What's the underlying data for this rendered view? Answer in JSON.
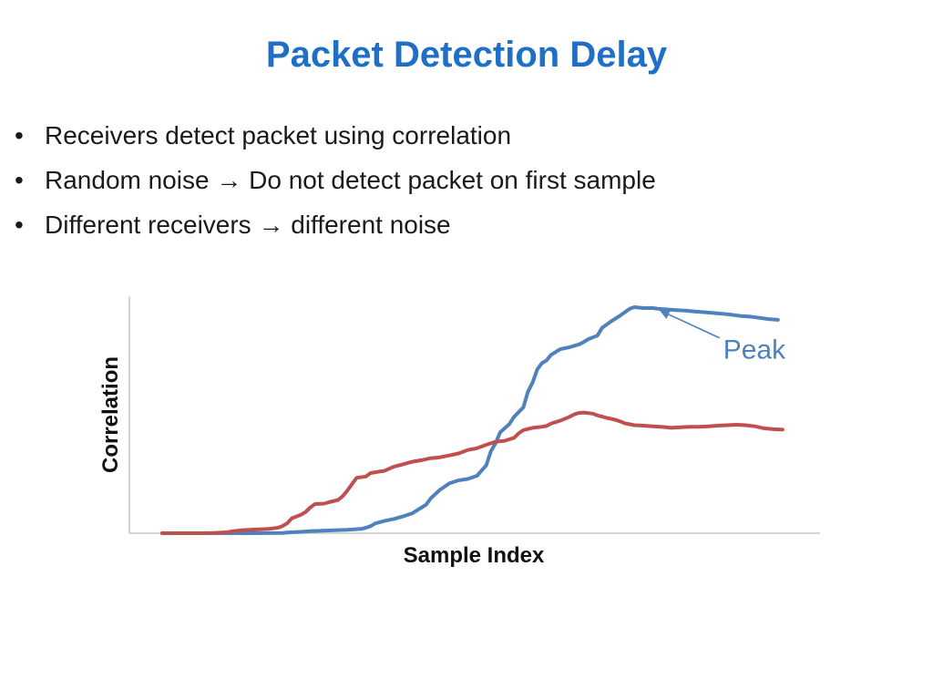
{
  "slide": {
    "title": "Packet Detection Delay",
    "bullets": [
      {
        "before": "Receivers detect packet using  correlation",
        "arrow": "",
        "after": ""
      },
      {
        "before": "Random noise ",
        "arrow": "→",
        "after": " Do not detect packet on first sample"
      },
      {
        "before": "Different receivers ",
        "arrow": "→",
        "after": " different noise"
      }
    ]
  },
  "chart_data": {
    "type": "line",
    "title": "",
    "xlabel": "Sample Index",
    "ylabel": "Correlation",
    "xlim": [
      0,
      135
    ],
    "ylim": [
      0,
      100
    ],
    "grid": false,
    "tick_labels": false,
    "annotation": {
      "text": "Peak",
      "series": 0,
      "target_x": 108,
      "color": "#4f81bd"
    },
    "series": [
      {
        "color": "#4f81bd",
        "points": [
          [
            0,
            0
          ],
          [
            10,
            0
          ],
          [
            20,
            0
          ],
          [
            26,
            0.1
          ],
          [
            27,
            0.3
          ],
          [
            30,
            0.6
          ],
          [
            32,
            0.9
          ],
          [
            36,
            1.2
          ],
          [
            40,
            1.5
          ],
          [
            43,
            1.9
          ],
          [
            44,
            2.4
          ],
          [
            45,
            3.1
          ],
          [
            46,
            4.3
          ],
          [
            48,
            5.4
          ],
          [
            50,
            6.3
          ],
          [
            52,
            7.4
          ],
          [
            54,
            8.8
          ],
          [
            55,
            10.1
          ],
          [
            57,
            12.6
          ],
          [
            58,
            15.4
          ],
          [
            60,
            19.2
          ],
          [
            62,
            22
          ],
          [
            64,
            23.4
          ],
          [
            66,
            24
          ],
          [
            68,
            25.4
          ],
          [
            70,
            30.1
          ],
          [
            71,
            36.3
          ],
          [
            72,
            39.8
          ],
          [
            73,
            44.6
          ],
          [
            75,
            48.3
          ],
          [
            76,
            51.5
          ],
          [
            78,
            55.7
          ],
          [
            79,
            62.6
          ],
          [
            80,
            66.6
          ],
          [
            81,
            72.4
          ],
          [
            82,
            75.2
          ],
          [
            83,
            76.4
          ],
          [
            84,
            78.9
          ],
          [
            86,
            81.4
          ],
          [
            88,
            82.3
          ],
          [
            90,
            83.5
          ],
          [
            91,
            84.5
          ],
          [
            92,
            85.8
          ],
          [
            94,
            87.4
          ],
          [
            95,
            90.8
          ],
          [
            96,
            92.3
          ],
          [
            97,
            93.8
          ],
          [
            99,
            96.4
          ],
          [
            101,
            99.3
          ],
          [
            102,
            100
          ],
          [
            104,
            99.6
          ],
          [
            106,
            99.6
          ],
          [
            107,
            99.3
          ],
          [
            109,
            99
          ],
          [
            111,
            98.7
          ],
          [
            113,
            98.5
          ],
          [
            115,
            98.1
          ],
          [
            117,
            97.8
          ],
          [
            119,
            97.4
          ],
          [
            121,
            97.1
          ],
          [
            123,
            96.6
          ],
          [
            125,
            96.1
          ],
          [
            127,
            95.8
          ],
          [
            129,
            95.3
          ],
          [
            131,
            94.7
          ],
          [
            133,
            94.4
          ]
        ]
      },
      {
        "color": "#c0504d",
        "points": [
          [
            0,
            0
          ],
          [
            5,
            0
          ],
          [
            10,
            0
          ],
          [
            14,
            0.4
          ],
          [
            15,
            0.8
          ],
          [
            17,
            1.3
          ],
          [
            21,
            1.7
          ],
          [
            23,
            1.9
          ],
          [
            25,
            2.4
          ],
          [
            26,
            3.2
          ],
          [
            27,
            4.4
          ],
          [
            28,
            6.6
          ],
          [
            30,
            8.2
          ],
          [
            31,
            9.4
          ],
          [
            32,
            11.4
          ],
          [
            33,
            12.9
          ],
          [
            35,
            13.1
          ],
          [
            36,
            13.7
          ],
          [
            38,
            14.7
          ],
          [
            39,
            16.4
          ],
          [
            40,
            18.9
          ],
          [
            41,
            21.7
          ],
          [
            42,
            24.5
          ],
          [
            44,
            25.1
          ],
          [
            45,
            26.6
          ],
          [
            47,
            27.3
          ],
          [
            48,
            27.6
          ],
          [
            50,
            29.4
          ],
          [
            52,
            30.5
          ],
          [
            54,
            31.6
          ],
          [
            56,
            32.3
          ],
          [
            58,
            33.2
          ],
          [
            60,
            33.6
          ],
          [
            62,
            34.4
          ],
          [
            64,
            35.3
          ],
          [
            66,
            36.8
          ],
          [
            68,
            37.6
          ],
          [
            70,
            39.1
          ],
          [
            72,
            40.5
          ],
          [
            74,
            40.9
          ],
          [
            76,
            42.2
          ],
          [
            77,
            44.2
          ],
          [
            78,
            45.6
          ],
          [
            80,
            46.6
          ],
          [
            82,
            47.1
          ],
          [
            83,
            47.4
          ],
          [
            84,
            48.5
          ],
          [
            86,
            49.8
          ],
          [
            88,
            51.5
          ],
          [
            89,
            52.6
          ],
          [
            90,
            53.2
          ],
          [
            91,
            53.4
          ],
          [
            93,
            52.9
          ],
          [
            94,
            52.1
          ],
          [
            95,
            51.6
          ],
          [
            96,
            51
          ],
          [
            97,
            50.6
          ],
          [
            98,
            50.1
          ],
          [
            99,
            49.4
          ],
          [
            100,
            48.6
          ],
          [
            102,
            47.8
          ],
          [
            104,
            47.6
          ],
          [
            106,
            47.3
          ],
          [
            108,
            47
          ],
          [
            110,
            46.6
          ],
          [
            112,
            46.9
          ],
          [
            114,
            47.1
          ],
          [
            116,
            47.1
          ],
          [
            118,
            47.3
          ],
          [
            120,
            47.6
          ],
          [
            122,
            47.8
          ],
          [
            124,
            48
          ],
          [
            126,
            47.8
          ],
          [
            128,
            47.3
          ],
          [
            130,
            46.4
          ],
          [
            132,
            46
          ],
          [
            134,
            45.8
          ]
        ]
      }
    ]
  }
}
